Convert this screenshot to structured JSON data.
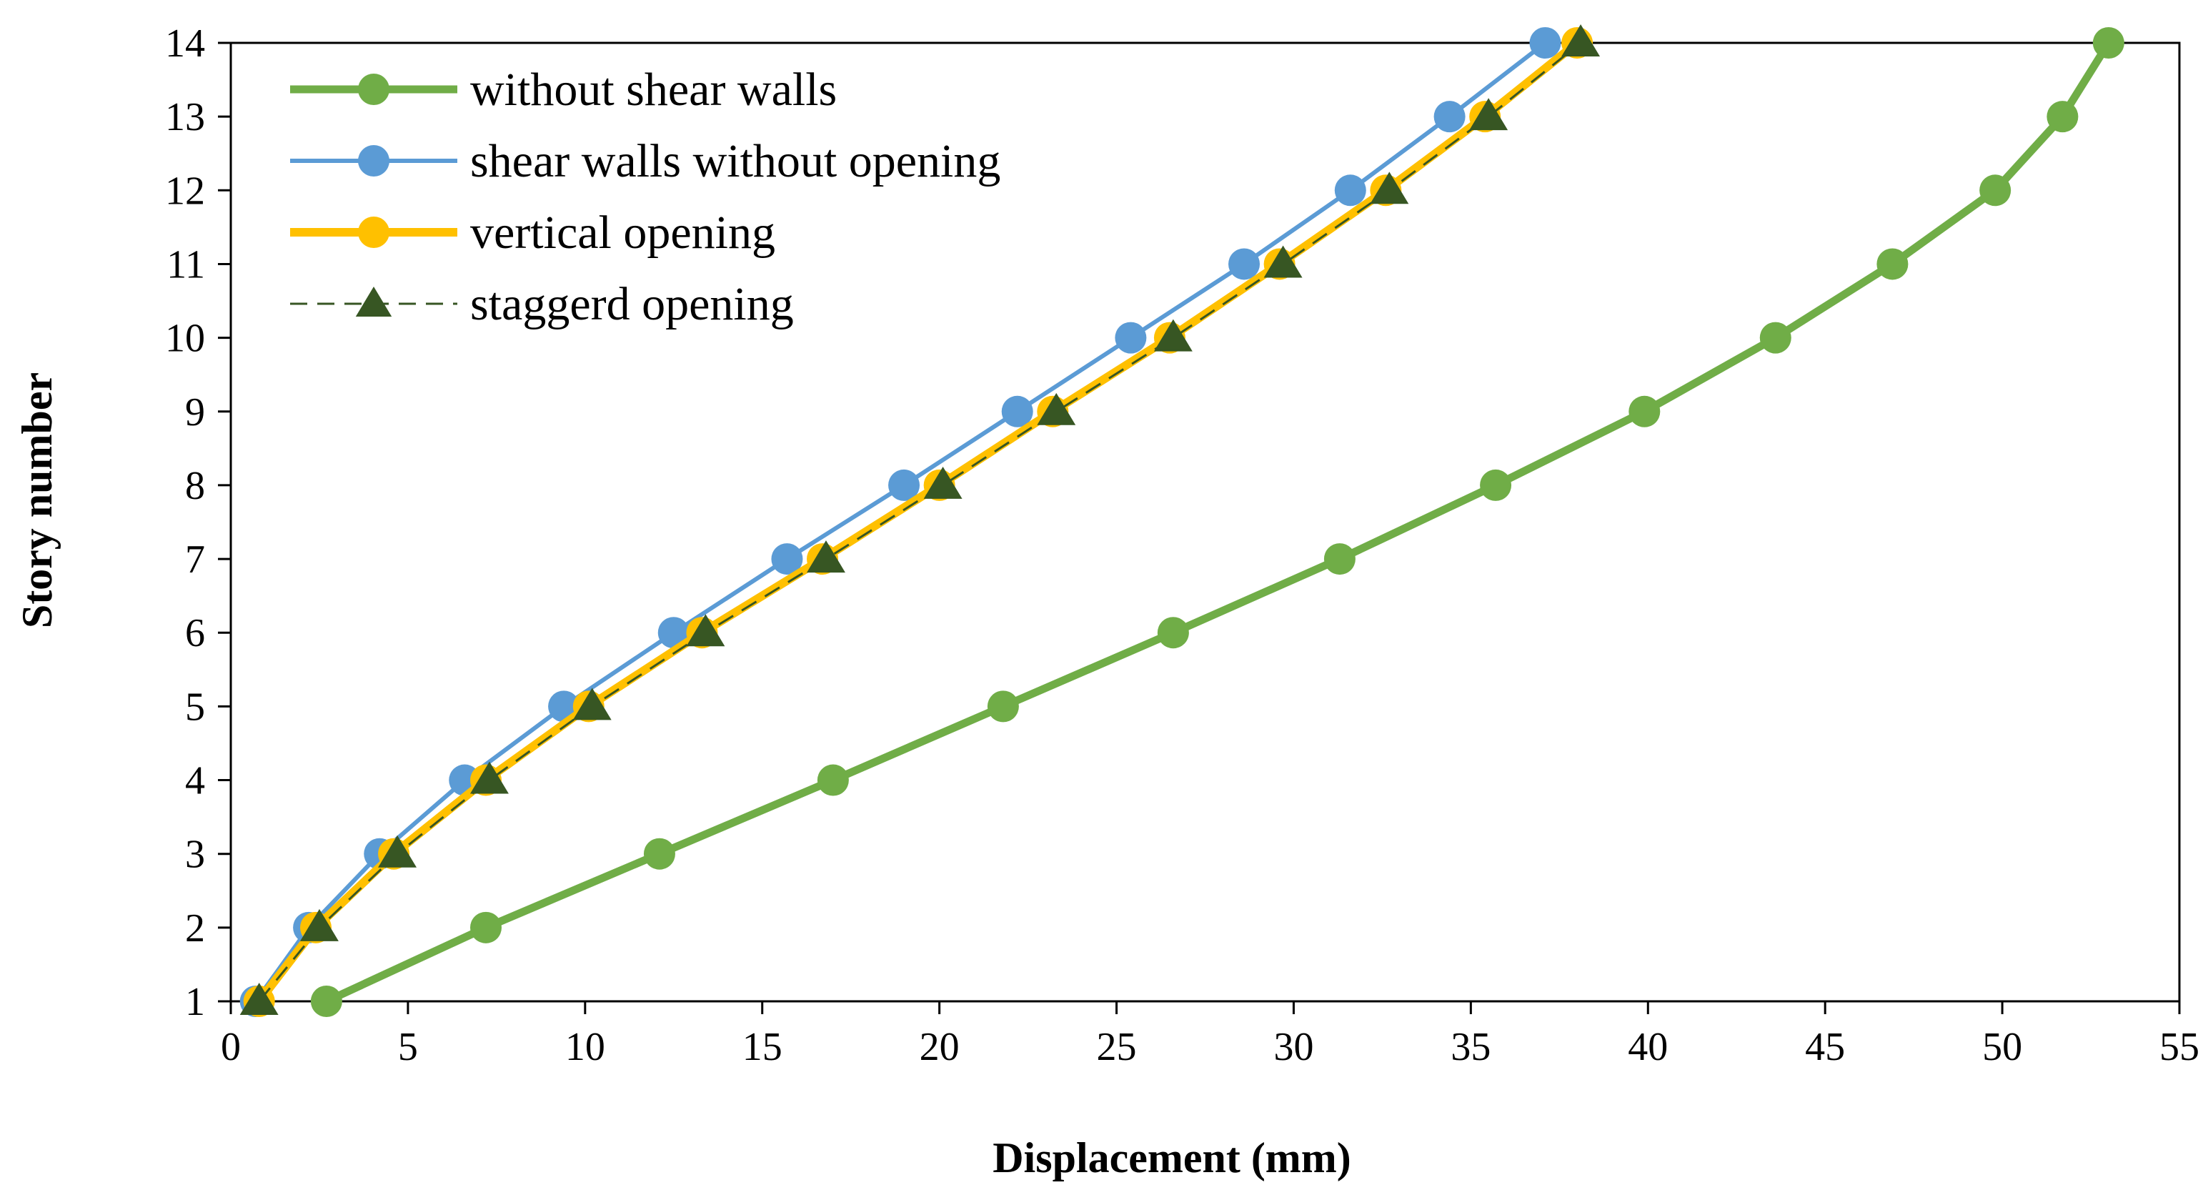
{
  "chart_data": {
    "type": "line",
    "title": "",
    "xlabel": "Displacement (mm)",
    "ylabel": "Story number",
    "xlim": [
      0,
      55
    ],
    "ylim": [
      1,
      14
    ],
    "xticks": [
      "0",
      "5",
      "10",
      "15",
      "20",
      "25",
      "30",
      "35",
      "40",
      "45",
      "50",
      "55"
    ],
    "yticks": [
      "1",
      "2",
      "3",
      "4",
      "5",
      "6",
      "7",
      "8",
      "9",
      "10",
      "11",
      "12",
      "13",
      "14"
    ],
    "grid": false,
    "legend_position": "top-left",
    "y": [
      1,
      2,
      3,
      4,
      5,
      6,
      7,
      8,
      9,
      10,
      11,
      12,
      13,
      14
    ],
    "series": [
      {
        "name": "without shear walls",
        "color": "#70ad47",
        "marker": "circle",
        "line_style": "solid",
        "x": [
          2.7,
          7.2,
          12.1,
          17.0,
          21.8,
          26.6,
          31.3,
          35.7,
          39.9,
          43.6,
          46.9,
          49.8,
          51.7,
          53.0
        ]
      },
      {
        "name": "shear walls without opening",
        "color": "#5b9bd5",
        "marker": "circle",
        "line_style": "solid",
        "x": [
          0.7,
          2.2,
          4.2,
          6.6,
          9.4,
          12.5,
          15.7,
          19.0,
          22.2,
          25.4,
          28.6,
          31.6,
          34.4,
          37.1
        ]
      },
      {
        "name": "vertical opening",
        "color": "#ffc000",
        "marker": "circle",
        "line_style": "solid",
        "x": [
          0.8,
          2.4,
          4.6,
          7.2,
          10.1,
          13.3,
          16.7,
          20.0,
          23.2,
          26.5,
          29.6,
          32.6,
          35.4,
          38.0
        ]
      },
      {
        "name": "staggerd opening",
        "color": "#375623",
        "marker": "triangle",
        "line_style": "dashed",
        "x": [
          0.8,
          2.5,
          4.7,
          7.3,
          10.2,
          13.4,
          16.8,
          20.1,
          23.3,
          26.6,
          29.7,
          32.7,
          35.5,
          38.1
        ]
      }
    ]
  }
}
